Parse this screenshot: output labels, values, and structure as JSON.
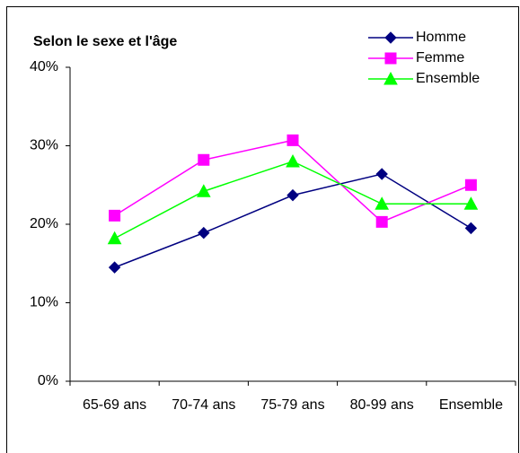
{
  "chart_data": {
    "type": "line",
    "title": "Selon le sexe et l'âge",
    "categories": [
      "65-69 ans",
      "70-74 ans",
      "75-79 ans",
      "80-99 ans",
      "Ensemble"
    ],
    "series": [
      {
        "name": "Homme",
        "color": "#000080",
        "marker": "diamond",
        "values": [
          14.5,
          18.9,
          23.7,
          26.4,
          19.5
        ]
      },
      {
        "name": "Femme",
        "color": "#ff00ff",
        "marker": "square",
        "values": [
          21.1,
          28.2,
          30.7,
          20.3,
          25.0
        ]
      },
      {
        "name": "Ensemble",
        "color": "#00ff00",
        "marker": "triangle",
        "values": [
          18.2,
          24.2,
          28.0,
          22.6,
          22.6
        ]
      }
    ],
    "ylim": [
      0,
      40
    ],
    "yticks": [
      {
        "value": 0,
        "label": "0%"
      },
      {
        "value": 10,
        "label": "10%"
      },
      {
        "value": 20,
        "label": "20%"
      },
      {
        "value": 30,
        "label": "30%"
      },
      {
        "value": 40,
        "label": "40%"
      }
    ],
    "grid": false,
    "legend": "top-right"
  }
}
